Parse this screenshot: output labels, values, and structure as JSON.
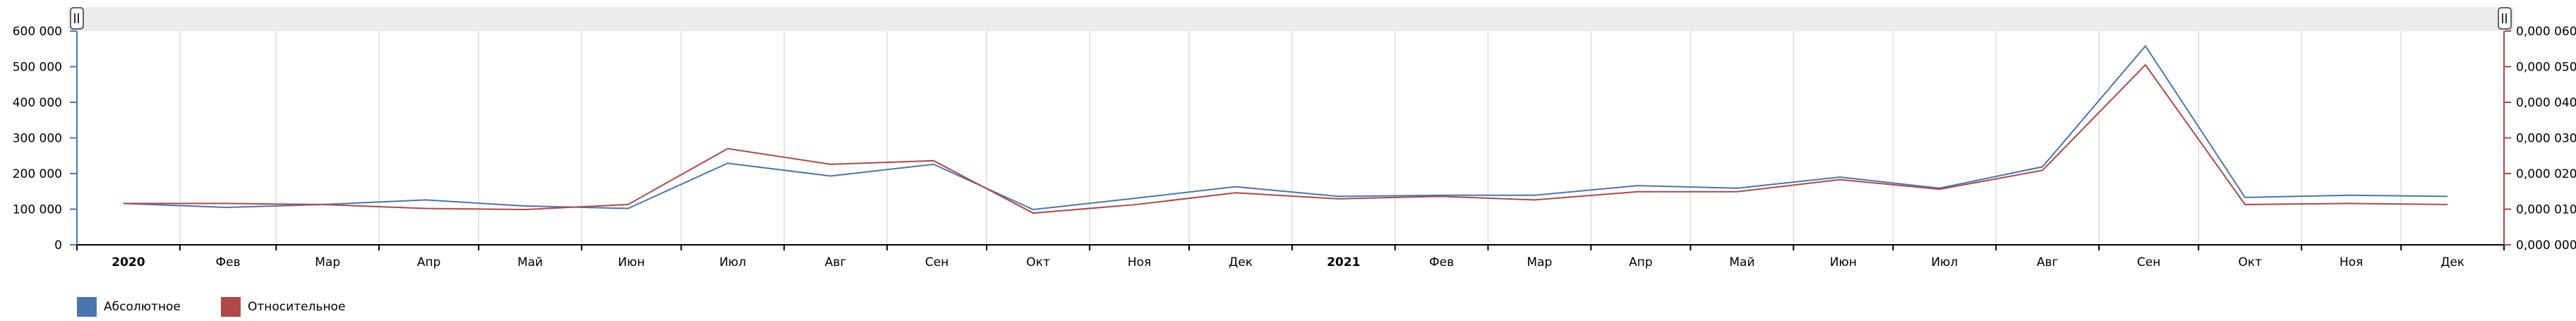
{
  "chart_data": {
    "type": "line",
    "x_labels": [
      "2020",
      "Фев",
      "Мар",
      "Апр",
      "Май",
      "Июн",
      "Июл",
      "Авг",
      "Сен",
      "Окт",
      "Ноя",
      "Дек",
      "2021",
      "Фев",
      "Мар",
      "Апр",
      "Май",
      "Июн",
      "Июл",
      "Авг",
      "Сен",
      "Окт",
      "Ноя",
      "Дек"
    ],
    "x_labels_bold": [
      "2020",
      "2021"
    ],
    "x_range": [
      "2020-01-01",
      "2022-01-01"
    ],
    "x": [
      "2020-01",
      "2020-02",
      "2020-03",
      "2020-04",
      "2020-05",
      "2020-06",
      "2020-07",
      "2020-08",
      "2020-09",
      "2020-10",
      "2020-11",
      "2020-12",
      "2021-01",
      "2021-02",
      "2021-03",
      "2021-04",
      "2021-05",
      "2021-06",
      "2021-07",
      "2021-08",
      "2021-09",
      "2021-10",
      "2021-11",
      "2021-12"
    ],
    "y_left": {
      "range": [
        0,
        600000
      ],
      "ticks": [
        0,
        100000,
        200000,
        300000,
        400000,
        500000,
        600000
      ],
      "tick_labels": [
        "0",
        "100 000",
        "200 000",
        "300 000",
        "400 000",
        "500 000",
        "600 000"
      ],
      "color": "#4a76b0"
    },
    "y_right": {
      "range": [
        0,
        6e-05
      ],
      "ticks": [
        0,
        1e-05,
        2e-05,
        3e-05,
        4e-05,
        5e-05,
        6e-05
      ],
      "tick_labels": [
        "0,000 000",
        "0,000 010",
        "0,000 020",
        "0,000 030",
        "0,000 040",
        "0,000 050",
        "0,000 060"
      ],
      "color": "#b04848"
    },
    "grid": "vertical",
    "legend_position": "bottom-left",
    "series": [
      {
        "name": "Абсолютное",
        "axis": "left",
        "color": "#4a76b0",
        "values": [
          116000,
          105000,
          113000,
          126000,
          109000,
          102000,
          229000,
          193000,
          226000,
          99000,
          131000,
          163000,
          136000,
          139000,
          139000,
          166000,
          159000,
          190000,
          159000,
          219000,
          558000,
          133000,
          139000,
          136000
        ]
      },
      {
        "name": "Относительное",
        "axis": "right",
        "color": "#b04848",
        "values": [
          1.16e-05,
          1.16e-05,
          1.13e-05,
          1.02e-05,
          9.9e-06,
          1.13e-05,
          2.7e-05,
          2.26e-05,
          2.36e-05,
          8.9e-06,
          1.13e-05,
          1.46e-05,
          1.29e-05,
          1.36e-05,
          1.26e-05,
          1.49e-05,
          1.49e-05,
          1.83e-05,
          1.56e-05,
          2.09e-05,
          5.05e-05,
          1.13e-05,
          1.16e-05,
          1.13e-05
        ]
      }
    ]
  }
}
